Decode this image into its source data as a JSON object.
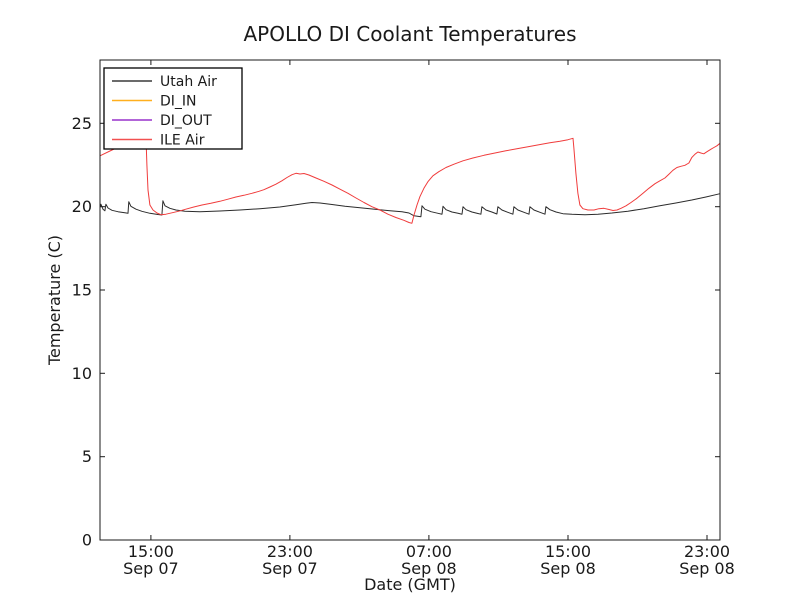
{
  "window": {
    "title": "APOLLO DI Coolant Temperatures"
  },
  "chart_data": {
    "type": "line",
    "title": "APOLLO DI Coolant Temperatures",
    "xlabel": "Date (GMT)",
    "ylabel": "Temperature (C)",
    "x_unit": "hours since Sep 07 00:00 GMT",
    "xlim": [
      12.07,
      47.75
    ],
    "ylim": [
      0,
      28.8
    ],
    "grid": false,
    "background": "#ffffff",
    "frame_color": "#1a1a1a",
    "xticks": [
      {
        "t": 15,
        "time": "15:00",
        "date": "Sep 07"
      },
      {
        "t": 23,
        "time": "23:00",
        "date": "Sep 07"
      },
      {
        "t": 31,
        "time": "07:00",
        "date": "Sep 08"
      },
      {
        "t": 39,
        "time": "15:00",
        "date": "Sep 08"
      },
      {
        "t": 47,
        "time": "23:00",
        "date": "Sep 08"
      }
    ],
    "yticks": [
      0,
      5,
      10,
      15,
      20,
      25
    ],
    "legend": {
      "position": "upper left",
      "entries": [
        {
          "label": "Utah Air",
          "color": "#3a3a3a"
        },
        {
          "label": "DI_IN",
          "color": "#ffaf1e"
        },
        {
          "label": "DI_OUT",
          "color": "#9932cc"
        },
        {
          "label": "ILE Air",
          "color": "#f25050"
        }
      ]
    },
    "series": [
      {
        "name": "Utah Air",
        "color": "#2b2b2b",
        "opacity": 1,
        "points": [
          [
            12.07,
            19.95
          ],
          [
            12.12,
            20.15
          ],
          [
            12.24,
            19.85
          ],
          [
            12.35,
            19.75
          ],
          [
            12.41,
            20.15
          ],
          [
            12.53,
            19.92
          ],
          [
            12.76,
            19.78
          ],
          [
            13.1,
            19.7
          ],
          [
            13.5,
            19.63
          ],
          [
            13.68,
            19.6
          ],
          [
            13.73,
            20.3
          ],
          [
            13.85,
            20.02
          ],
          [
            14.14,
            19.85
          ],
          [
            14.48,
            19.72
          ],
          [
            14.94,
            19.6
          ],
          [
            15.4,
            19.53
          ],
          [
            15.63,
            19.5
          ],
          [
            15.69,
            20.35
          ],
          [
            15.81,
            20.05
          ],
          [
            16.09,
            19.9
          ],
          [
            16.44,
            19.8
          ],
          [
            16.96,
            19.73
          ],
          [
            17.82,
            19.7
          ],
          [
            18.97,
            19.74
          ],
          [
            20.12,
            19.8
          ],
          [
            21.27,
            19.88
          ],
          [
            22.42,
            19.98
          ],
          [
            23.35,
            20.12
          ],
          [
            23.92,
            20.2
          ],
          [
            24.27,
            20.25
          ],
          [
            24.73,
            20.22
          ],
          [
            25.42,
            20.13
          ],
          [
            26.17,
            20.03
          ],
          [
            27.03,
            19.93
          ],
          [
            27.89,
            19.84
          ],
          [
            28.76,
            19.76
          ],
          [
            29.45,
            19.7
          ],
          [
            29.85,
            19.62
          ],
          [
            30.14,
            19.45
          ],
          [
            30.54,
            19.4
          ],
          [
            30.6,
            20.05
          ],
          [
            30.77,
            19.85
          ],
          [
            31.12,
            19.7
          ],
          [
            31.52,
            19.6
          ],
          [
            31.75,
            19.55
          ],
          [
            31.81,
            20.02
          ],
          [
            31.98,
            19.82
          ],
          [
            32.32,
            19.68
          ],
          [
            32.67,
            19.6
          ],
          [
            32.9,
            19.55
          ],
          [
            32.96,
            20.0
          ],
          [
            33.13,
            19.82
          ],
          [
            33.47,
            19.68
          ],
          [
            33.82,
            19.59
          ],
          [
            33.99,
            19.55
          ],
          [
            34.05,
            20.0
          ],
          [
            34.28,
            19.8
          ],
          [
            34.62,
            19.68
          ],
          [
            34.91,
            19.56
          ],
          [
            34.97,
            20.0
          ],
          [
            35.2,
            19.8
          ],
          [
            35.54,
            19.66
          ],
          [
            35.83,
            19.55
          ],
          [
            35.89,
            20.0
          ],
          [
            36.12,
            19.8
          ],
          [
            36.47,
            19.66
          ],
          [
            36.76,
            19.55
          ],
          [
            36.81,
            20.0
          ],
          [
            37.04,
            19.8
          ],
          [
            37.39,
            19.66
          ],
          [
            37.68,
            19.55
          ],
          [
            37.73,
            20.0
          ],
          [
            37.96,
            19.82
          ],
          [
            38.31,
            19.68
          ],
          [
            38.71,
            19.58
          ],
          [
            39.23,
            19.54
          ],
          [
            39.98,
            19.52
          ],
          [
            40.73,
            19.55
          ],
          [
            41.53,
            19.62
          ],
          [
            42.45,
            19.73
          ],
          [
            43.37,
            19.88
          ],
          [
            44.29,
            20.05
          ],
          [
            45.21,
            20.22
          ],
          [
            46.13,
            20.4
          ],
          [
            46.94,
            20.58
          ],
          [
            47.75,
            20.78
          ]
        ]
      },
      {
        "name": "DI_IN",
        "color": "#ffa500",
        "opacity": 0.65,
        "points": [
          [
            12.07,
            0
          ],
          [
            47.75,
            0
          ]
        ]
      },
      {
        "name": "DI_OUT",
        "color": "#9932cc",
        "opacity": 0.5,
        "points": [
          [
            12.07,
            0
          ],
          [
            47.75,
            0
          ]
        ]
      },
      {
        "name": "ILE Air",
        "color": "#f03c3c",
        "opacity": 1,
        "points": [
          [
            12.07,
            23.05
          ],
          [
            12.76,
            23.4
          ],
          [
            13.45,
            23.75
          ],
          [
            14.02,
            24.0
          ],
          [
            14.43,
            24.2
          ],
          [
            14.71,
            24.3
          ],
          [
            14.77,
            22.5
          ],
          [
            14.83,
            21.0
          ],
          [
            14.94,
            20.1
          ],
          [
            15.12,
            19.8
          ],
          [
            15.35,
            19.62
          ],
          [
            15.58,
            19.52
          ],
          [
            15.86,
            19.55
          ],
          [
            16.21,
            19.63
          ],
          [
            16.61,
            19.73
          ],
          [
            17.01,
            19.85
          ],
          [
            17.47,
            19.98
          ],
          [
            17.94,
            20.1
          ],
          [
            18.45,
            20.2
          ],
          [
            18.97,
            20.32
          ],
          [
            19.43,
            20.45
          ],
          [
            19.89,
            20.58
          ],
          [
            20.35,
            20.68
          ],
          [
            20.81,
            20.8
          ],
          [
            21.22,
            20.92
          ],
          [
            21.5,
            21.02
          ],
          [
            21.85,
            21.18
          ],
          [
            22.19,
            21.35
          ],
          [
            22.54,
            21.55
          ],
          [
            22.83,
            21.75
          ],
          [
            23.12,
            21.92
          ],
          [
            23.35,
            22.0
          ],
          [
            23.58,
            21.96
          ],
          [
            23.81,
            21.99
          ],
          [
            24.09,
            21.9
          ],
          [
            24.5,
            21.72
          ],
          [
            24.96,
            21.52
          ],
          [
            25.42,
            21.3
          ],
          [
            25.88,
            21.05
          ],
          [
            26.34,
            20.8
          ],
          [
            26.8,
            20.52
          ],
          [
            27.26,
            20.25
          ],
          [
            27.72,
            20.0
          ],
          [
            28.18,
            19.8
          ],
          [
            28.64,
            19.55
          ],
          [
            29.1,
            19.35
          ],
          [
            29.56,
            19.18
          ],
          [
            29.85,
            19.05
          ],
          [
            30.02,
            19.0
          ],
          [
            30.14,
            19.5
          ],
          [
            30.31,
            20.1
          ],
          [
            30.48,
            20.6
          ],
          [
            30.71,
            21.1
          ],
          [
            30.94,
            21.5
          ],
          [
            31.23,
            21.85
          ],
          [
            31.57,
            22.1
          ],
          [
            31.98,
            22.35
          ],
          [
            32.44,
            22.55
          ],
          [
            32.96,
            22.75
          ],
          [
            33.53,
            22.92
          ],
          [
            34.17,
            23.08
          ],
          [
            34.8,
            23.22
          ],
          [
            35.43,
            23.35
          ],
          [
            36.06,
            23.47
          ],
          [
            36.7,
            23.6
          ],
          [
            37.33,
            23.72
          ],
          [
            37.96,
            23.83
          ],
          [
            38.54,
            23.93
          ],
          [
            39.0,
            24.02
          ],
          [
            39.29,
            24.1
          ],
          [
            39.34,
            23.5
          ],
          [
            39.46,
            22.0
          ],
          [
            39.57,
            20.8
          ],
          [
            39.69,
            20.1
          ],
          [
            39.86,
            19.88
          ],
          [
            40.15,
            19.8
          ],
          [
            40.5,
            19.8
          ],
          [
            40.78,
            19.88
          ],
          [
            41.07,
            19.9
          ],
          [
            41.36,
            19.83
          ],
          [
            41.59,
            19.77
          ],
          [
            41.82,
            19.8
          ],
          [
            42.05,
            19.9
          ],
          [
            42.34,
            20.05
          ],
          [
            42.63,
            20.25
          ],
          [
            42.97,
            20.5
          ],
          [
            43.32,
            20.8
          ],
          [
            43.66,
            21.1
          ],
          [
            44.01,
            21.38
          ],
          [
            44.29,
            21.55
          ],
          [
            44.58,
            21.72
          ],
          [
            44.81,
            21.95
          ],
          [
            45.04,
            22.18
          ],
          [
            45.27,
            22.35
          ],
          [
            45.5,
            22.42
          ],
          [
            45.73,
            22.48
          ],
          [
            45.96,
            22.62
          ],
          [
            46.13,
            22.95
          ],
          [
            46.31,
            23.15
          ],
          [
            46.48,
            23.28
          ],
          [
            46.65,
            23.22
          ],
          [
            46.82,
            23.17
          ],
          [
            47.0,
            23.3
          ],
          [
            47.23,
            23.45
          ],
          [
            47.4,
            23.55
          ],
          [
            47.57,
            23.65
          ],
          [
            47.75,
            23.8
          ]
        ]
      }
    ]
  }
}
